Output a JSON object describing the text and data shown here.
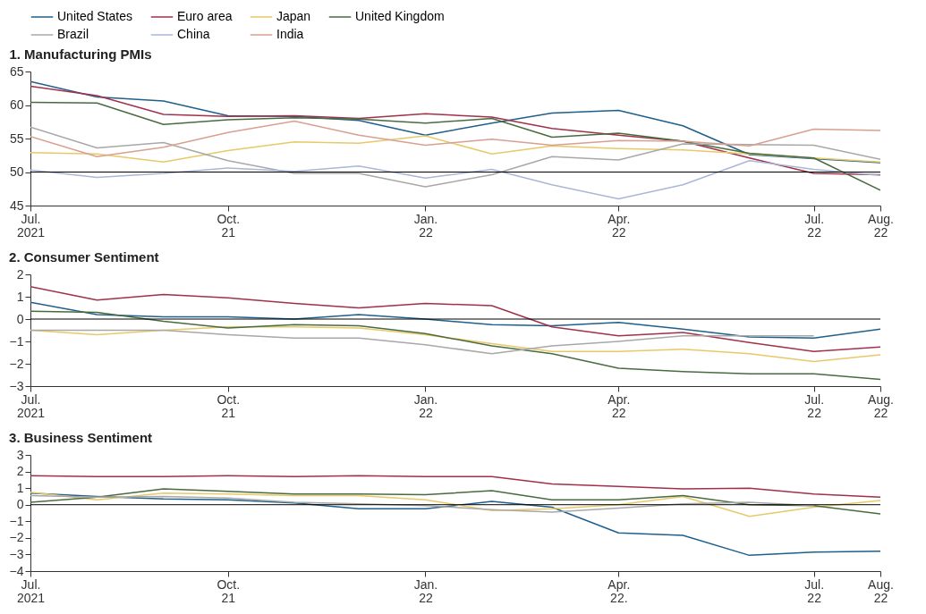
{
  "chart_data": [
    {
      "type": "line",
      "title": "1. Manufacturing PMIs",
      "legend": "top",
      "grid": false,
      "marker": "none",
      "line_style": "solid",
      "x": [
        "2021-07",
        "2021-08",
        "2021-09",
        "2021-10",
        "2021-11",
        "2021-12",
        "2022-01",
        "2022-02",
        "2022-03",
        "2022-04",
        "2022-05",
        "2022-06",
        "2022-07",
        "2022-08"
      ],
      "xlim": [
        "2021-07",
        "2022-08"
      ],
      "xticks": [
        {
          "value": "2021-07",
          "label": "Jul.\n2021"
        },
        {
          "value": "2021-10",
          "label": "Oct.\n21"
        },
        {
          "value": "2022-01",
          "label": "Jan.\n22"
        },
        {
          "value": "2022-04",
          "label": "Apr.\n22"
        },
        {
          "value": "2022-07",
          "label": "Jul.\n22"
        },
        {
          "value": "2022-08",
          "label": "Aug.\n22"
        }
      ],
      "ylim": [
        45,
        65
      ],
      "yticks": [
        45,
        50,
        55,
        60,
        65
      ],
      "ref_lines": [
        {
          "axis": "y",
          "value": 50,
          "color": "#000000"
        }
      ],
      "series": [
        {
          "name": "United States",
          "color": "#1f5f8b",
          "values": [
            63.5,
            61.2,
            60.6,
            58.4,
            58.3,
            57.7,
            55.5,
            57.3,
            58.8,
            59.2,
            56.9,
            52.6,
            52.0,
            51.4
          ]
        },
        {
          "name": "Euro area",
          "color": "#a0314a",
          "values": [
            62.8,
            61.4,
            58.6,
            58.3,
            58.4,
            58.0,
            58.7,
            58.2,
            56.5,
            55.5,
            54.6,
            52.1,
            49.8,
            49.6
          ]
        },
        {
          "name": "Japan",
          "color": "#e8c96a",
          "values": [
            52.9,
            52.7,
            51.5,
            53.2,
            54.5,
            54.3,
            55.4,
            52.7,
            53.9,
            53.5,
            53.3,
            52.7,
            52.1,
            51.5
          ]
        },
        {
          "name": "United Kingdom",
          "color": "#4a6b3f",
          "values": [
            60.4,
            60.3,
            57.1,
            57.8,
            58.1,
            57.9,
            57.3,
            58.0,
            55.2,
            55.8,
            54.6,
            52.8,
            52.1,
            47.3
          ]
        },
        {
          "name": "Brazil",
          "color": "#a8a8a8",
          "values": [
            56.7,
            53.6,
            54.4,
            51.7,
            49.8,
            49.8,
            47.8,
            49.6,
            52.3,
            51.8,
            54.2,
            54.1,
            54.0,
            51.9
          ]
        },
        {
          "name": "China",
          "color": "#a9b8d8",
          "values": [
            50.3,
            49.2,
            49.8,
            50.6,
            50.1,
            50.9,
            49.1,
            50.4,
            48.1,
            46.0,
            48.1,
            51.7,
            50.4,
            49.5
          ]
        },
        {
          "name": "India",
          "color": "#d9a090",
          "values": [
            55.3,
            52.3,
            53.7,
            55.9,
            57.6,
            55.5,
            54.0,
            54.9,
            54.0,
            54.7,
            54.6,
            53.9,
            56.4,
            56.2
          ]
        }
      ]
    },
    {
      "type": "line",
      "title": "2. Consumer Sentiment",
      "grid": false,
      "marker": "none",
      "line_style": "solid",
      "x": [
        "2021-07",
        "2021-08",
        "2021-09",
        "2021-10",
        "2021-11",
        "2021-12",
        "2022-01",
        "2022-02",
        "2022-03",
        "2022-04",
        "2022-05",
        "2022-06",
        "2022-07",
        "2022-08"
      ],
      "xlim": [
        "2021-07",
        "2022-08"
      ],
      "xticks": [
        {
          "value": "2021-07",
          "label": "Jul.\n2021"
        },
        {
          "value": "2021-10",
          "label": "Oct.\n21"
        },
        {
          "value": "2022-01",
          "label": "Jan.\n22"
        },
        {
          "value": "2022-04",
          "label": "Apr.\n22"
        },
        {
          "value": "2022-07",
          "label": "Jul.\n22"
        },
        {
          "value": "2022-08",
          "label": "Aug.\n22"
        }
      ],
      "ylim": [
        -3,
        2
      ],
      "yticks": [
        -3,
        -2,
        -1,
        0,
        1,
        2
      ],
      "ref_lines": [
        {
          "axis": "y",
          "value": 0,
          "color": "#000000"
        }
      ],
      "series": [
        {
          "name": "United States",
          "color": "#1f5f8b",
          "values": [
            0.75,
            0.2,
            0.1,
            0.1,
            0.0,
            0.2,
            0.0,
            -0.25,
            -0.3,
            -0.15,
            -0.45,
            -0.8,
            -0.85,
            -0.45
          ]
        },
        {
          "name": "Euro area",
          "color": "#a0314a",
          "values": [
            1.45,
            0.85,
            1.1,
            0.95,
            0.7,
            0.5,
            0.7,
            0.6,
            -0.35,
            -0.75,
            -0.6,
            -1.05,
            -1.45,
            -1.25
          ]
        },
        {
          "name": "Japan",
          "color": "#e8c96a",
          "values": [
            -0.5,
            -0.7,
            -0.5,
            -0.35,
            -0.35,
            -0.4,
            -0.7,
            -1.1,
            -1.45,
            -1.45,
            -1.35,
            -1.55,
            -1.9,
            -1.6
          ]
        },
        {
          "name": "United Kingdom",
          "color": "#4a6b3f",
          "values": [
            0.35,
            0.3,
            -0.1,
            -0.4,
            -0.25,
            -0.3,
            -0.65,
            -1.2,
            -1.55,
            -2.2,
            -2.35,
            -2.45,
            -2.45,
            -2.7
          ]
        },
        {
          "name": "Brazil",
          "color": "#a8a8a8",
          "values": [
            -0.5,
            -0.5,
            -0.5,
            -0.7,
            -0.85,
            -0.85,
            -1.15,
            -1.55,
            -1.2,
            -1.0,
            -0.75,
            -0.75,
            -0.75,
            null
          ]
        }
      ]
    },
    {
      "type": "line",
      "title": "3. Business Sentiment",
      "grid": false,
      "marker": "none",
      "line_style": "solid",
      "x": [
        "2021-07",
        "2021-08",
        "2021-09",
        "2021-10",
        "2021-11",
        "2021-12",
        "2022-01",
        "2022-02",
        "2022-03",
        "2022-04",
        "2022-05",
        "2022-06",
        "2022-07",
        "2022-08"
      ],
      "xlim": [
        "2021-07",
        "2022-08"
      ],
      "xticks": [
        {
          "value": "2021-07",
          "label": "Jul.\n2021"
        },
        {
          "value": "2021-10",
          "label": "Oct.\n21"
        },
        {
          "value": "2022-01",
          "label": "Jan.\n22"
        },
        {
          "value": "2022-04",
          "label": "Apr.\n22."
        },
        {
          "value": "2022-07",
          "label": "Jul.\n22"
        },
        {
          "value": "2022-08",
          "label": "Aug.\n22"
        }
      ],
      "ylim": [
        -4,
        3
      ],
      "yticks": [
        -4,
        -3,
        -2,
        -1,
        0,
        1,
        2,
        3
      ],
      "ref_lines": [
        {
          "axis": "y",
          "value": 0,
          "color": "#000000"
        }
      ],
      "series": [
        {
          "name": "United States",
          "color": "#1f5f8b",
          "values": [
            0.7,
            0.5,
            0.35,
            0.3,
            0.1,
            -0.25,
            -0.25,
            0.2,
            -0.15,
            -1.7,
            -1.85,
            -3.05,
            -2.85,
            -2.8
          ]
        },
        {
          "name": "Euro area",
          "color": "#a0314a",
          "values": [
            1.75,
            1.7,
            1.7,
            1.75,
            1.7,
            1.75,
            1.7,
            1.7,
            1.25,
            1.1,
            0.95,
            1.0,
            0.65,
            0.45
          ]
        },
        {
          "name": "Japan",
          "color": "#e8c96a",
          "values": [
            0.75,
            0.3,
            0.7,
            0.65,
            0.55,
            0.55,
            0.3,
            -0.35,
            -0.25,
            0.0,
            0.5,
            -0.7,
            -0.15,
            0.25
          ]
        },
        {
          "name": "United Kingdom",
          "color": "#4a6b3f",
          "values": [
            0.15,
            0.45,
            0.95,
            0.8,
            0.65,
            0.65,
            0.6,
            0.85,
            0.3,
            0.3,
            0.55,
            0.0,
            -0.05,
            -0.55
          ]
        },
        {
          "name": "Brazil",
          "color": "#a8a8a8",
          "values": [
            0.55,
            0.45,
            0.5,
            0.4,
            0.15,
            0.05,
            -0.05,
            -0.3,
            -0.45,
            -0.2,
            0.05,
            0.15,
            -0.05,
            null
          ]
        }
      ]
    }
  ]
}
